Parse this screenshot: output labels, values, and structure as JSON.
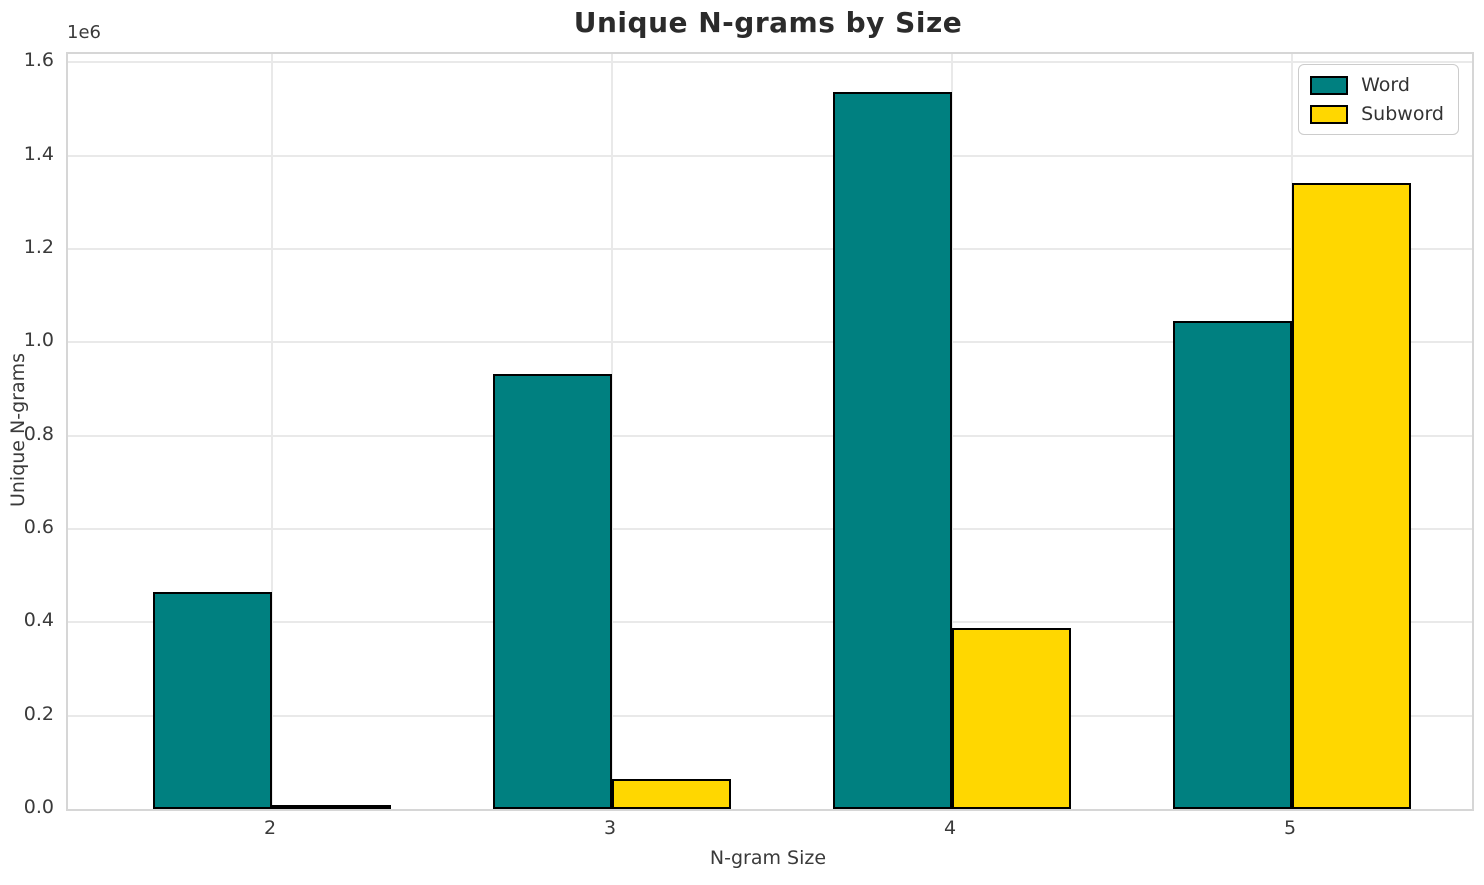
{
  "chart_data": {
    "type": "bar",
    "title": "Unique N-grams by Size",
    "xlabel": "N-gram Size",
    "ylabel": "Unique N-grams",
    "y_offset_text": "1e6",
    "categories": [
      "2",
      "3",
      "4",
      "5"
    ],
    "series": [
      {
        "name": "Word",
        "color": "#008080",
        "values": [
          466000,
          933000,
          1537000,
          1045000
        ]
      },
      {
        "name": "Subword",
        "color": "#FFD700",
        "values": [
          9000,
          65000,
          387000,
          1342000
        ]
      }
    ],
    "ylim": [
      0,
      1618000
    ],
    "ytick_step": 200000,
    "ytick_labels": [
      "0.0",
      "0.2",
      "0.4",
      "0.6",
      "0.8",
      "1.0",
      "1.2",
      "1.4",
      "1.6"
    ],
    "grid": true,
    "legend_position": "upper right",
    "bar_edge_color": "#000000",
    "grid_color": "#e9e9e9",
    "spine_color": "#d6d6d6"
  }
}
